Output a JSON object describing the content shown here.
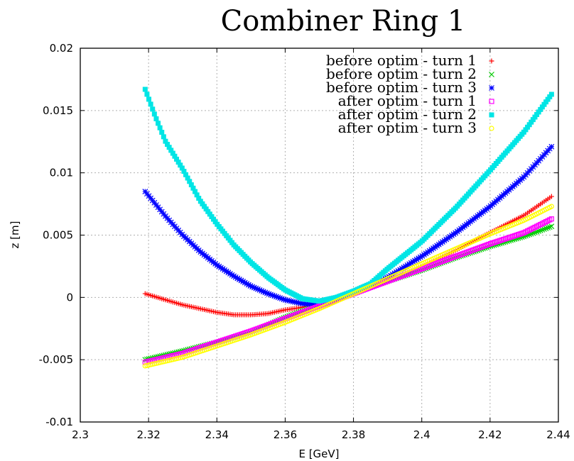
{
  "chart_data": {
    "type": "scatter",
    "title": "Combiner Ring 1",
    "xlabel": "E [GeV]",
    "ylabel": "z [m]",
    "xlim": [
      2.3,
      2.44
    ],
    "ylim": [
      -0.01,
      0.02
    ],
    "xticks": [
      "2.3",
      "2.32",
      "2.34",
      "2.36",
      "2.38",
      "2.4",
      "2.42",
      "2.44"
    ],
    "yticks": [
      "-0.01",
      "-0.005",
      "0",
      "0.005",
      "0.01",
      "0.015",
      "0.02"
    ],
    "grid": true,
    "legend_position": "top-right",
    "series": [
      {
        "name": "before optim - turn 1",
        "marker": "plus",
        "color": "#ff0000",
        "points": [
          [
            2.319,
            0.0003
          ],
          [
            2.325,
            -0.0002
          ],
          [
            2.33,
            -0.0006
          ],
          [
            2.335,
            -0.0009
          ],
          [
            2.34,
            -0.0012
          ],
          [
            2.345,
            -0.0014
          ],
          [
            2.35,
            -0.0014
          ],
          [
            2.355,
            -0.0013
          ],
          [
            2.36,
            -0.001
          ],
          [
            2.365,
            -0.0008
          ],
          [
            2.37,
            -0.0004
          ],
          [
            2.375,
            -0.0001
          ],
          [
            2.38,
            0.0003
          ],
          [
            2.39,
            0.0013
          ],
          [
            2.4,
            0.0025
          ],
          [
            2.41,
            0.0038
          ],
          [
            2.42,
            0.0052
          ],
          [
            2.43,
            0.0066
          ],
          [
            2.438,
            0.0081
          ]
        ]
      },
      {
        "name": "before optim - turn 2",
        "marker": "cross",
        "color": "#00cc00",
        "points": [
          [
            2.319,
            -0.005
          ],
          [
            2.33,
            -0.0043
          ],
          [
            2.34,
            -0.0036
          ],
          [
            2.35,
            -0.0028
          ],
          [
            2.36,
            -0.0016
          ],
          [
            2.37,
            -0.0006
          ],
          [
            2.38,
            0.0004
          ],
          [
            2.39,
            0.0013
          ],
          [
            2.4,
            0.0022
          ],
          [
            2.41,
            0.0032
          ],
          [
            2.42,
            0.0041
          ],
          [
            2.43,
            0.0049
          ],
          [
            2.438,
            0.0057
          ]
        ]
      },
      {
        "name": "before optim - turn 3",
        "marker": "star",
        "color": "#0000ff",
        "points": [
          [
            2.319,
            0.0085
          ],
          [
            2.325,
            0.0065
          ],
          [
            2.33,
            0.005
          ],
          [
            2.335,
            0.0037
          ],
          [
            2.34,
            0.0026
          ],
          [
            2.345,
            0.0017
          ],
          [
            2.35,
            0.0009
          ],
          [
            2.355,
            0.0003
          ],
          [
            2.36,
            -0.0002
          ],
          [
            2.365,
            -0.0005
          ],
          [
            2.37,
            -0.0006
          ],
          [
            2.375,
            -0.0002
          ],
          [
            2.38,
            0.0004
          ],
          [
            2.39,
            0.0016
          ],
          [
            2.4,
            0.0033
          ],
          [
            2.41,
            0.0052
          ],
          [
            2.42,
            0.0073
          ],
          [
            2.43,
            0.0097
          ],
          [
            2.438,
            0.0121
          ]
        ]
      },
      {
        "name": "after optim - turn 1",
        "marker": "square-open",
        "color": "#ff00ff",
        "points": [
          [
            2.319,
            -0.0052
          ],
          [
            2.33,
            -0.0045
          ],
          [
            2.34,
            -0.0036
          ],
          [
            2.35,
            -0.0027
          ],
          [
            2.36,
            -0.0017
          ],
          [
            2.37,
            -0.0007
          ],
          [
            2.38,
            0.0003
          ],
          [
            2.39,
            0.0013
          ],
          [
            2.4,
            0.0023
          ],
          [
            2.41,
            0.0033
          ],
          [
            2.42,
            0.0043
          ],
          [
            2.43,
            0.0052
          ],
          [
            2.438,
            0.0063
          ]
        ]
      },
      {
        "name": "after optim - turn 2",
        "marker": "square-filled",
        "color": "#00e5e5",
        "points": [
          [
            2.319,
            0.0167
          ],
          [
            2.322,
            0.0145
          ],
          [
            2.325,
            0.0125
          ],
          [
            2.33,
            0.0103
          ],
          [
            2.335,
            0.0078
          ],
          [
            2.34,
            0.0059
          ],
          [
            2.345,
            0.0042
          ],
          [
            2.35,
            0.0028
          ],
          [
            2.355,
            0.0016
          ],
          [
            2.36,
            0.0006
          ],
          [
            2.365,
            -0.0001
          ],
          [
            2.37,
            -0.0003
          ],
          [
            2.375,
            0.0
          ],
          [
            2.38,
            0.0005
          ],
          [
            2.385,
            0.0011
          ],
          [
            2.39,
            0.0023
          ],
          [
            2.4,
            0.0045
          ],
          [
            2.41,
            0.0072
          ],
          [
            2.42,
            0.0102
          ],
          [
            2.43,
            0.0133
          ],
          [
            2.438,
            0.0163
          ]
        ]
      },
      {
        "name": "after optim - turn 3",
        "marker": "circle-open",
        "color": "#ffff00",
        "points": [
          [
            2.319,
            -0.0055
          ],
          [
            2.33,
            -0.0048
          ],
          [
            2.34,
            -0.0039
          ],
          [
            2.35,
            -0.003
          ],
          [
            2.36,
            -0.002
          ],
          [
            2.37,
            -0.0009
          ],
          [
            2.38,
            0.0003
          ],
          [
            2.39,
            0.0015
          ],
          [
            2.4,
            0.0027
          ],
          [
            2.41,
            0.0039
          ],
          [
            2.42,
            0.0051
          ],
          [
            2.43,
            0.0062
          ],
          [
            2.438,
            0.0073
          ]
        ]
      }
    ]
  }
}
